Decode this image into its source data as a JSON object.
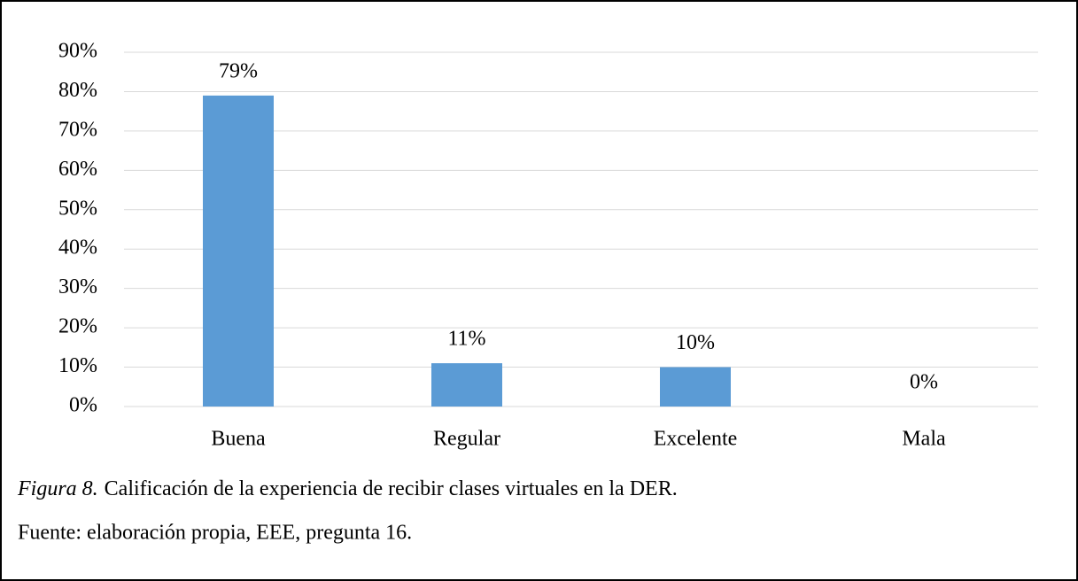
{
  "chart_data": {
    "type": "bar",
    "categories": [
      "Buena",
      "Regular",
      "Excelente",
      "Mala"
    ],
    "values": [
      79,
      11,
      10,
      0
    ],
    "value_labels": [
      "79%",
      "11%",
      "10%",
      "0%"
    ],
    "color": "#5b9bd5",
    "ylim": [
      0,
      90
    ],
    "yticks": [
      {
        "value": 0,
        "label": "0%"
      },
      {
        "value": 10,
        "label": "10%"
      },
      {
        "value": 20,
        "label": "20%"
      },
      {
        "value": 30,
        "label": "30%"
      },
      {
        "value": 40,
        "label": "40%"
      },
      {
        "value": 50,
        "label": "50%"
      },
      {
        "value": 60,
        "label": "60%"
      },
      {
        "value": 70,
        "label": "70%"
      },
      {
        "value": 80,
        "label": "80%"
      },
      {
        "value": 90,
        "label": "90%"
      }
    ],
    "grid": true,
    "caption_label": "Figura 8.",
    "caption": "Calificación de la experiencia de recibir clases virtuales en la DER.",
    "source": "Fuente: elaboración propia, EEE, pregunta 16."
  }
}
